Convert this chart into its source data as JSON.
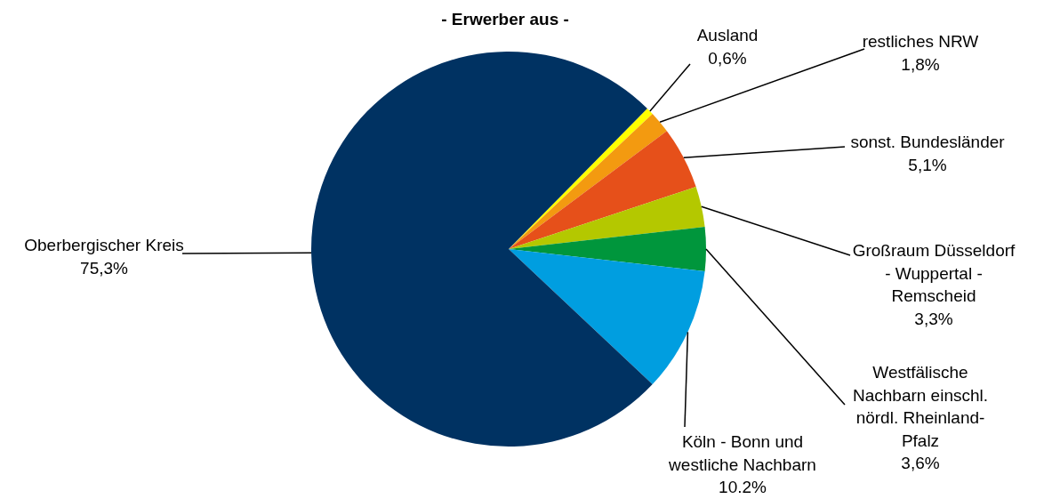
{
  "chart_data": {
    "type": "pie",
    "title": "- Erwerber aus -",
    "categories": [
      "Ausland",
      "restliches NRW",
      "sonst. Bundesländer",
      "Großraum Düsseldorf\n- Wuppertal -\nRemscheid",
      "Westfälische\nNachbarn einschl.\nnördl. Rheinland-\nPfalz",
      "Köln - Bonn und\nwestliche Nachbarn",
      "Oberbergischer Kreis"
    ],
    "values": [
      0.6,
      1.8,
      5.1,
      3.3,
      3.6,
      10.2,
      75.3
    ],
    "value_labels": [
      "0,6%",
      "1,8%",
      "5,1%",
      "3,3%",
      "3,6%",
      "10.2%",
      "75,3%"
    ],
    "colors": [
      "#ffff00",
      "#f39a10",
      "#e6501a",
      "#b4c800",
      "#00963c",
      "#009ee0",
      "#003262"
    ]
  }
}
